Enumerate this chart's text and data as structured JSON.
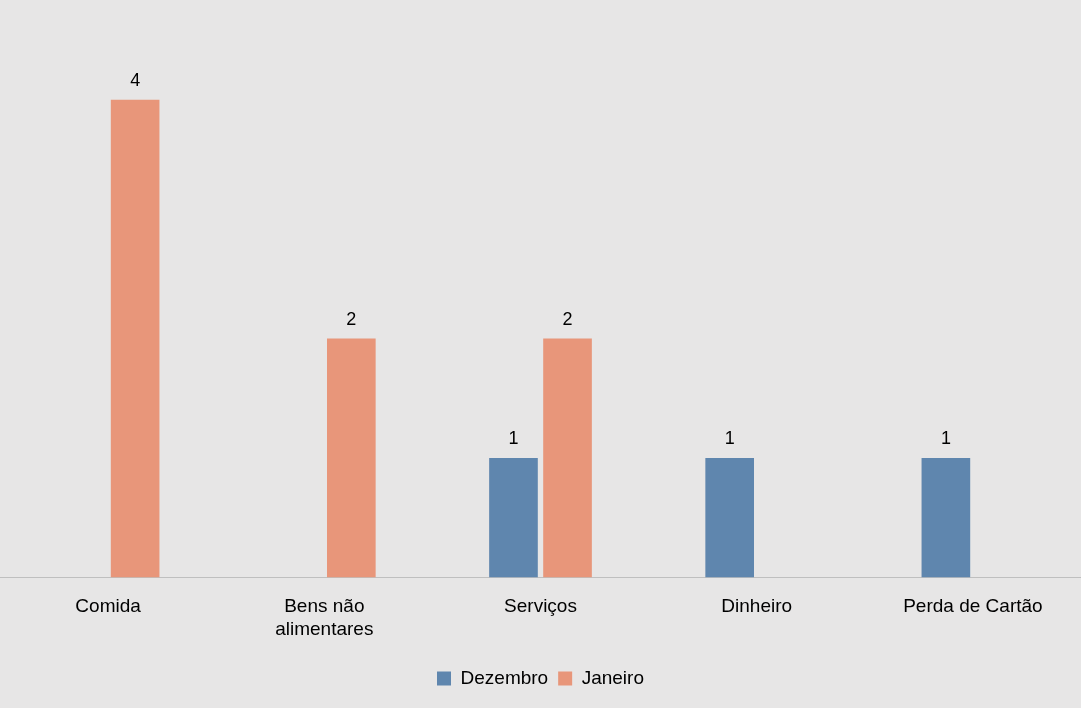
{
  "chart_data": {
    "type": "bar",
    "categories": [
      "Comida",
      "Bens não alimentares",
      "Serviços",
      "Dinheiro",
      "Perda de Cartão"
    ],
    "series": [
      {
        "name": "Dezembro",
        "color": "#5f86ae",
        "values": [
          null,
          null,
          1,
          1,
          1
        ]
      },
      {
        "name": "Janeiro",
        "color": "#e8967a",
        "values": [
          4,
          2,
          2,
          null,
          null
        ]
      }
    ],
    "data_labels": true,
    "legend": "bottom",
    "grid": false
  }
}
